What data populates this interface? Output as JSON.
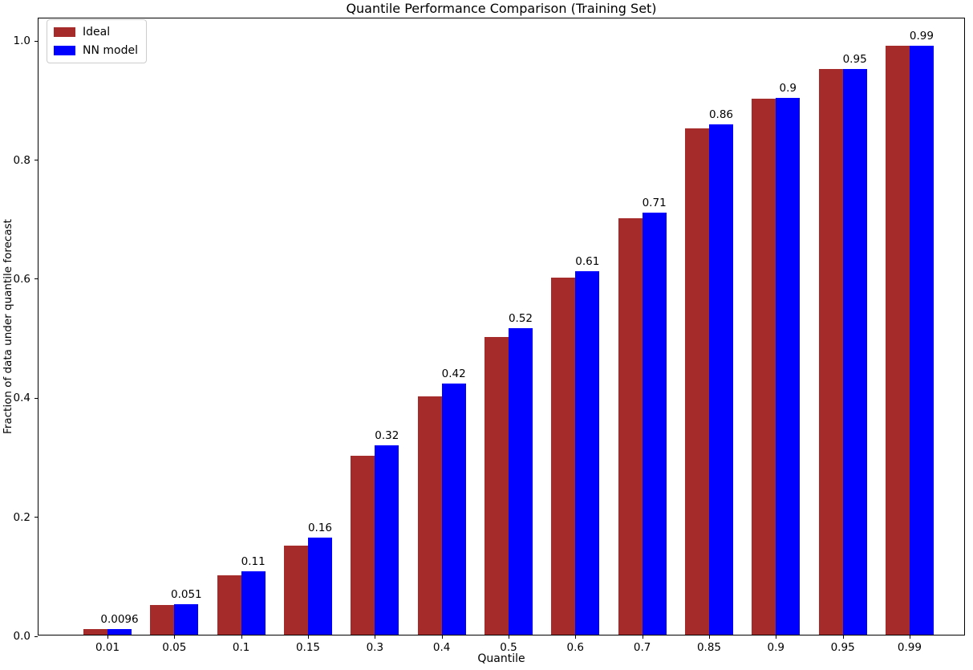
{
  "figure": {
    "title": "Quantile Performance Comparison (Training Set)",
    "xlabel": "Quantile",
    "ylabel": "Fraction of data under quantile forecast"
  },
  "colors": {
    "ideal_bar": "#a52a2a",
    "nn_bar": "#0000ff",
    "axis": "#000000",
    "legend_border": "#cccccc"
  },
  "chart_data": {
    "type": "bar",
    "title": "Quantile Performance Comparison (Training Set)",
    "xlabel": "Quantile",
    "ylabel": "Fraction of data under quantile forecast",
    "categories": [
      "0.01",
      "0.05",
      "0.1",
      "0.15",
      "0.3",
      "0.4",
      "0.5",
      "0.6",
      "0.7",
      "0.85",
      "0.9",
      "0.95",
      "0.99"
    ],
    "series": [
      {
        "name": "Ideal",
        "color": "#a52a2a",
        "values": [
          0.01,
          0.05,
          0.1,
          0.15,
          0.3,
          0.4,
          0.5,
          0.6,
          0.7,
          0.85,
          0.9,
          0.95,
          0.99
        ]
      },
      {
        "name": "NN model",
        "color": "#0000ff",
        "values": [
          0.0096,
          0.051,
          0.107,
          0.163,
          0.318,
          0.422,
          0.515,
          0.611,
          0.709,
          0.857,
          0.902,
          0.951,
          0.989
        ]
      }
    ],
    "bar_labels": [
      "0.0096",
      "0.051",
      "0.11",
      "0.16",
      "0.32",
      "0.42",
      "0.52",
      "0.61",
      "0.71",
      "0.86",
      "0.9",
      "0.95",
      "0.99"
    ],
    "bar_labels_on_series": "NN model",
    "yticks": [
      "0.0",
      "0.2",
      "0.4",
      "0.6",
      "0.8",
      "1.0"
    ],
    "ylim": [
      0,
      1.038
    ],
    "xlim_units": [
      -1.0,
      13.0
    ],
    "grid": false,
    "legend_position": "upper left",
    "legend_entries": [
      "Ideal",
      "NN model"
    ]
  }
}
